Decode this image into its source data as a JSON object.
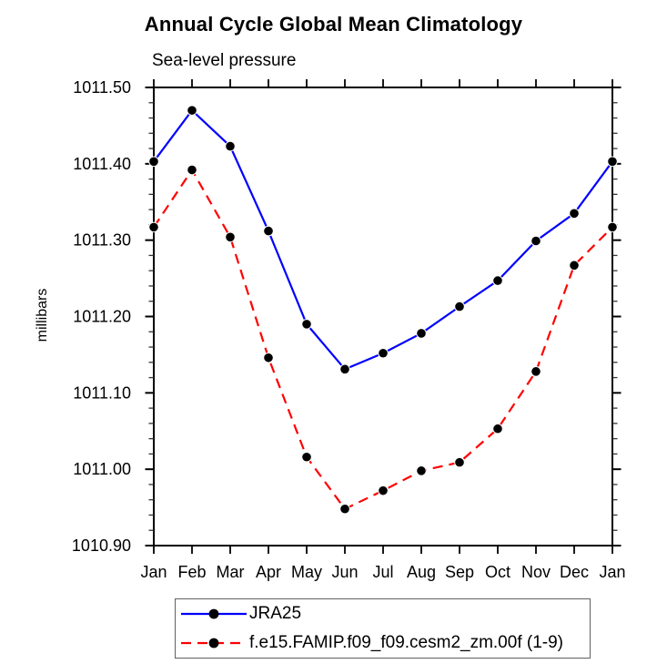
{
  "chart_data": {
    "type": "line",
    "title": "Annual Cycle Global Mean Climatology",
    "subtitle": "Sea-level pressure",
    "xlabel": "",
    "ylabel": "millibars",
    "categories": [
      "Jan",
      "Feb",
      "Mar",
      "Apr",
      "May",
      "Jun",
      "Jul",
      "Aug",
      "Sep",
      "Oct",
      "Nov",
      "Dec",
      "Jan"
    ],
    "series": [
      {
        "name": "JRA25",
        "color": "#0000ff",
        "line_style": "solid",
        "marker": "black-filled-circle",
        "values": [
          1011.403,
          1011.47,
          1011.423,
          1011.312,
          1011.19,
          1011.131,
          1011.152,
          1011.178,
          1011.213,
          1011.247,
          1011.299,
          1011.335,
          1011.403
        ]
      },
      {
        "name": "f.e15.FAMIP.f09_f09.cesm2_zm.00f (1-9)",
        "color": "#ff0000",
        "line_style": "dashed",
        "marker": "black-filled-circle",
        "values": [
          1011.317,
          1011.392,
          1011.304,
          1011.146,
          1011.016,
          1010.948,
          1010.972,
          1010.998,
          1011.009,
          1011.053,
          1011.128,
          1011.267,
          1011.317
        ]
      }
    ],
    "ylim": [
      1010.9,
      1011.5
    ],
    "yticks": [
      1010.9,
      1011.0,
      1011.1,
      1011.2,
      1011.3,
      1011.4,
      1011.5
    ],
    "ytick_labels": [
      "1010.90",
      "1011.00",
      "1011.10",
      "1011.20",
      "1011.30",
      "1011.40",
      "1011.50"
    ],
    "yminor_step": 0.02,
    "grid": false,
    "tick_direction": "outward",
    "legend_position": "bottom",
    "axis_color": "#000000",
    "marker_color": "#000000"
  }
}
